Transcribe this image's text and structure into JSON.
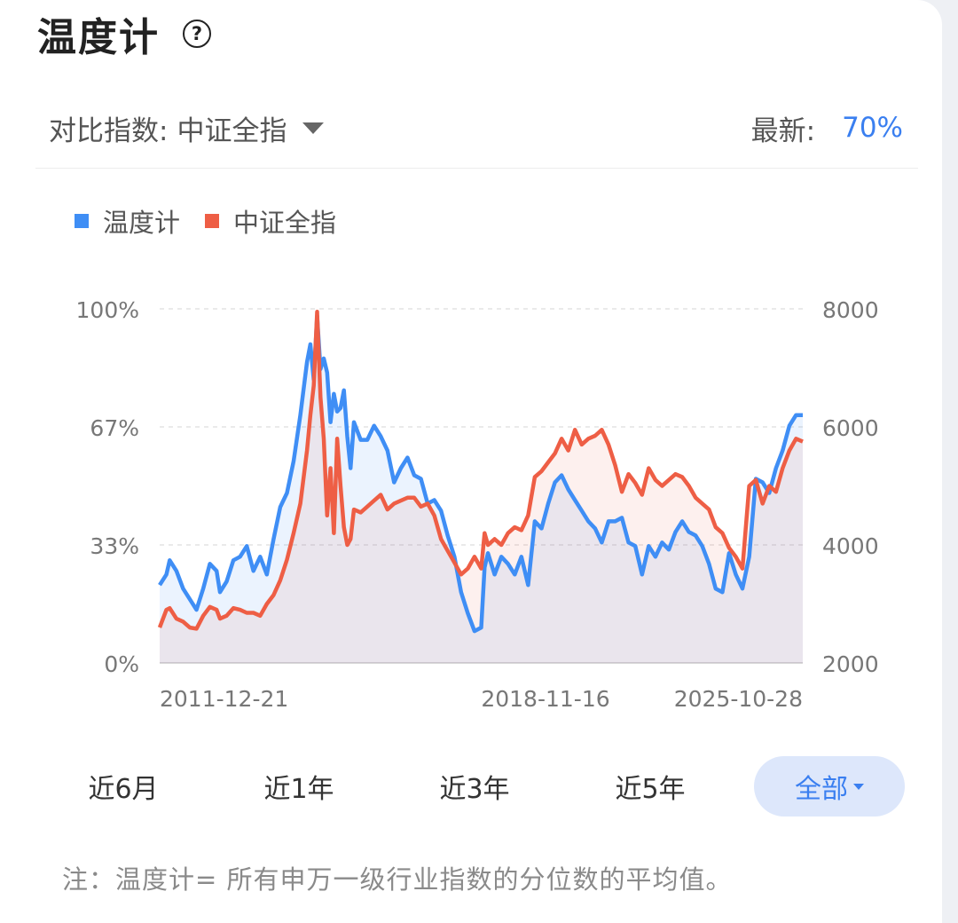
{
  "header": {
    "title": "温度计",
    "help_icon": "question-circle-icon"
  },
  "compare": {
    "label": "对比指数:",
    "value": "中证全指",
    "dropdown_icon": "caret-down-icon"
  },
  "latest": {
    "label": "最新:",
    "value": "70%"
  },
  "colors": {
    "blue": "#3f8ef5",
    "red": "#ee5e45",
    "accent": "#3a7ff0"
  },
  "chart_data": {
    "type": "line",
    "x_ticks": [
      "2011-12-21",
      "2018-11-16",
      "2025-10-28"
    ],
    "y_left": {
      "ticks": [
        "0%",
        "33%",
        "67%",
        "100%"
      ],
      "range": [
        0,
        100
      ]
    },
    "y_right": {
      "ticks": [
        "2000",
        "4000",
        "6000",
        "8000"
      ],
      "range": [
        2000,
        8000
      ]
    },
    "grid": true,
    "legend_position": "top-left",
    "series": [
      {
        "name": "温度计",
        "axis": "left",
        "color": "#3f8ef5",
        "points": [
          [
            0,
            22
          ],
          [
            2,
            25
          ],
          [
            3,
            29
          ],
          [
            5,
            26
          ],
          [
            7,
            21
          ],
          [
            9,
            18
          ],
          [
            11,
            15
          ],
          [
            13,
            21
          ],
          [
            15,
            28
          ],
          [
            17,
            26
          ],
          [
            18,
            20
          ],
          [
            20,
            23
          ],
          [
            22,
            29
          ],
          [
            24,
            30
          ],
          [
            26,
            33
          ],
          [
            28,
            26
          ],
          [
            30,
            30
          ],
          [
            32,
            25
          ],
          [
            34,
            35
          ],
          [
            36,
            44
          ],
          [
            38,
            48
          ],
          [
            40,
            57
          ],
          [
            42,
            70
          ],
          [
            44,
            85
          ],
          [
            45,
            90
          ],
          [
            46,
            80
          ],
          [
            47,
            98
          ],
          [
            48,
            83
          ],
          [
            49,
            86
          ],
          [
            50,
            82
          ],
          [
            51,
            68
          ],
          [
            52,
            76
          ],
          [
            53,
            71
          ],
          [
            54,
            72
          ],
          [
            55,
            77
          ],
          [
            56,
            64
          ],
          [
            57,
            55
          ],
          [
            58,
            68
          ],
          [
            60,
            63
          ],
          [
            62,
            63
          ],
          [
            64,
            67
          ],
          [
            66,
            64
          ],
          [
            68,
            60
          ],
          [
            70,
            51
          ],
          [
            72,
            55
          ],
          [
            74,
            58
          ],
          [
            76,
            53
          ],
          [
            78,
            52
          ],
          [
            80,
            45
          ],
          [
            82,
            46
          ],
          [
            84,
            43
          ],
          [
            86,
            36
          ],
          [
            88,
            30
          ],
          [
            90,
            20
          ],
          [
            92,
            14
          ],
          [
            94,
            9
          ],
          [
            96,
            10
          ],
          [
            97,
            27
          ],
          [
            98,
            31
          ],
          [
            100,
            25
          ],
          [
            102,
            30
          ],
          [
            104,
            28
          ],
          [
            106,
            25
          ],
          [
            108,
            30
          ],
          [
            110,
            22
          ],
          [
            112,
            40
          ],
          [
            114,
            38
          ],
          [
            116,
            45
          ],
          [
            118,
            51
          ],
          [
            120,
            53
          ],
          [
            122,
            49
          ],
          [
            124,
            46
          ],
          [
            126,
            43
          ],
          [
            128,
            40
          ],
          [
            130,
            38
          ],
          [
            132,
            34
          ],
          [
            134,
            40
          ],
          [
            136,
            40
          ],
          [
            138,
            41
          ],
          [
            140,
            34
          ],
          [
            142,
            33
          ],
          [
            144,
            25
          ],
          [
            146,
            33
          ],
          [
            148,
            30
          ],
          [
            150,
            34
          ],
          [
            152,
            32
          ],
          [
            154,
            37
          ],
          [
            156,
            40
          ],
          [
            158,
            37
          ],
          [
            160,
            36
          ],
          [
            162,
            33
          ],
          [
            164,
            28
          ],
          [
            166,
            21
          ],
          [
            168,
            20
          ],
          [
            170,
            31
          ],
          [
            172,
            25
          ],
          [
            174,
            21
          ],
          [
            176,
            30
          ],
          [
            178,
            52
          ],
          [
            180,
            51
          ],
          [
            182,
            48
          ],
          [
            184,
            55
          ],
          [
            186,
            60
          ],
          [
            188,
            67
          ],
          [
            190,
            70
          ],
          [
            192,
            70
          ]
        ]
      },
      {
        "name": "中证全指",
        "axis": "right",
        "color": "#ee5e45",
        "points": [
          [
            0,
            2600
          ],
          [
            2,
            2900
          ],
          [
            3,
            2930
          ],
          [
            5,
            2750
          ],
          [
            7,
            2700
          ],
          [
            9,
            2600
          ],
          [
            11,
            2580
          ],
          [
            13,
            2800
          ],
          [
            15,
            2950
          ],
          [
            17,
            2900
          ],
          [
            18,
            2750
          ],
          [
            20,
            2800
          ],
          [
            22,
            2930
          ],
          [
            24,
            2900
          ],
          [
            26,
            2850
          ],
          [
            28,
            2850
          ],
          [
            30,
            2800
          ],
          [
            32,
            3000
          ],
          [
            34,
            3150
          ],
          [
            36,
            3400
          ],
          [
            38,
            3750
          ],
          [
            40,
            4200
          ],
          [
            42,
            4700
          ],
          [
            44,
            5600
          ],
          [
            45,
            6200
          ],
          [
            46,
            6700
          ],
          [
            47,
            7950
          ],
          [
            48,
            6500
          ],
          [
            49,
            5800
          ],
          [
            50,
            4500
          ],
          [
            51,
            5300
          ],
          [
            52,
            4200
          ],
          [
            53,
            5800
          ],
          [
            54,
            5000
          ],
          [
            55,
            4300
          ],
          [
            56,
            4000
          ],
          [
            57,
            4100
          ],
          [
            58,
            4600
          ],
          [
            60,
            4550
          ],
          [
            62,
            4650
          ],
          [
            64,
            4750
          ],
          [
            66,
            4850
          ],
          [
            68,
            4600
          ],
          [
            70,
            4700
          ],
          [
            72,
            4750
          ],
          [
            74,
            4800
          ],
          [
            76,
            4800
          ],
          [
            78,
            4650
          ],
          [
            80,
            4700
          ],
          [
            82,
            4500
          ],
          [
            84,
            4100
          ],
          [
            86,
            3900
          ],
          [
            88,
            3700
          ],
          [
            90,
            3500
          ],
          [
            92,
            3600
          ],
          [
            94,
            3800
          ],
          [
            96,
            3600
          ],
          [
            97,
            4200
          ],
          [
            98,
            4000
          ],
          [
            100,
            4100
          ],
          [
            102,
            4000
          ],
          [
            104,
            4200
          ],
          [
            106,
            4300
          ],
          [
            108,
            4250
          ],
          [
            110,
            4500
          ],
          [
            112,
            5150
          ],
          [
            114,
            5250
          ],
          [
            116,
            5400
          ],
          [
            118,
            5550
          ],
          [
            120,
            5800
          ],
          [
            122,
            5600
          ],
          [
            124,
            5950
          ],
          [
            126,
            5700
          ],
          [
            128,
            5800
          ],
          [
            130,
            5850
          ],
          [
            132,
            5950
          ],
          [
            134,
            5700
          ],
          [
            136,
            5350
          ],
          [
            138,
            4900
          ],
          [
            140,
            5200
          ],
          [
            142,
            5050
          ],
          [
            144,
            4850
          ],
          [
            146,
            5300
          ],
          [
            148,
            5100
          ],
          [
            150,
            5000
          ],
          [
            152,
            5100
          ],
          [
            154,
            5200
          ],
          [
            156,
            5150
          ],
          [
            158,
            5000
          ],
          [
            160,
            4800
          ],
          [
            162,
            4700
          ],
          [
            164,
            4600
          ],
          [
            166,
            4300
          ],
          [
            168,
            4200
          ],
          [
            170,
            3950
          ],
          [
            172,
            3800
          ],
          [
            174,
            3600
          ],
          [
            176,
            5000
          ],
          [
            178,
            5100
          ],
          [
            180,
            4700
          ],
          [
            182,
            5000
          ],
          [
            184,
            4900
          ],
          [
            186,
            5300
          ],
          [
            188,
            5600
          ],
          [
            190,
            5800
          ],
          [
            192,
            5750
          ]
        ]
      }
    ]
  },
  "ranges": {
    "items": [
      "近6月",
      "近1年",
      "近3年",
      "近5年",
      "全部"
    ],
    "active_index": 4,
    "active_icon": "caret-down-icon"
  },
  "note": "注：温度计= 所有申万一级行业指数的分位数的平均值。"
}
